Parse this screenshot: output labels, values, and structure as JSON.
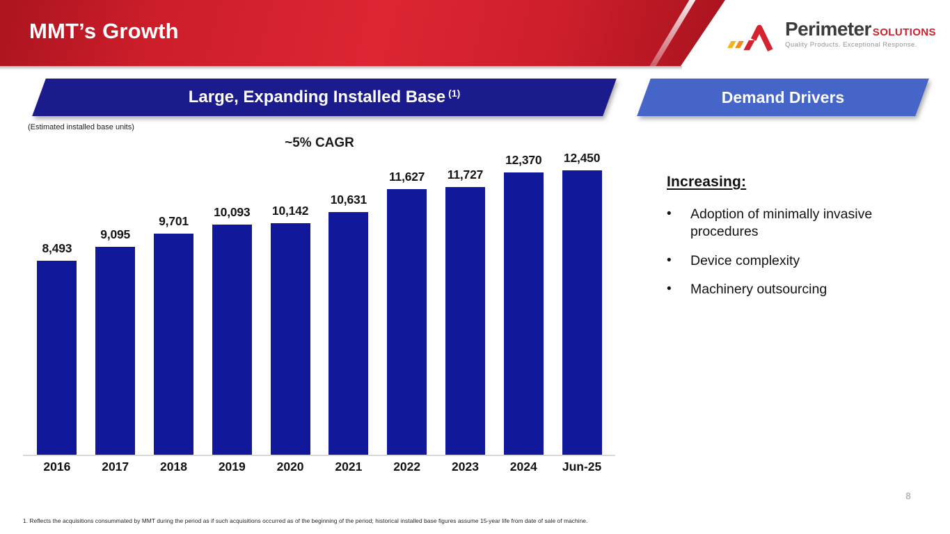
{
  "slide": {
    "title": "MMT’s Growth"
  },
  "logo": {
    "brand": "Perimeter",
    "suffix": "SOLUTIONS",
    "tagline": "Quality Products. Exceptional Response.",
    "icon": "perimeter-a-mark-icon"
  },
  "left_panel": {
    "banner_label": "Large, Expanding Installed Base",
    "banner_superscript": "(1)",
    "units_note": "(Estimated installed base units)"
  },
  "right_panel": {
    "banner_label": "Demand Drivers",
    "heading": "Increasing:",
    "bullet_char": "•",
    "bullets": [
      "Adoption of minimally invasive procedures",
      "Device complexity",
      "Machinery outsourcing"
    ]
  },
  "chart_data": {
    "type": "bar",
    "title": "~5% CAGR",
    "categories": [
      "2016",
      "2017",
      "2018",
      "2019",
      "2020",
      "2021",
      "2022",
      "2023",
      "2024",
      "Jun-25"
    ],
    "values": [
      8493,
      9095,
      9701,
      10093,
      10142,
      10631,
      11627,
      11727,
      12370,
      12450
    ],
    "value_labels": [
      "8,493",
      "9,095",
      "9,701",
      "10,093",
      "10,142",
      "10,631",
      "11,627",
      "11,727",
      "12,370",
      "12,450"
    ],
    "xlabel": "",
    "ylabel": "Estimated installed base units",
    "ylim": [
      0,
      12450
    ],
    "grid": false,
    "legend": "none",
    "value_labels_position": "above-bars",
    "bar_color": "#11189a"
  },
  "footer": {
    "footnote": "1. Reflects the acquisitions consummated by MMT during the period as if such acquisitions occurred as of the beginning of the period; historical installed base figures assume 15-year life from date of sale of machine.",
    "page_number": "8"
  },
  "colors": {
    "header_red": "#cf1f2c",
    "navy_banner": "#1b1b8e",
    "royal_banner": "#4565c9",
    "bar_blue": "#11189a",
    "axis_gray": "#d8d8d8"
  }
}
